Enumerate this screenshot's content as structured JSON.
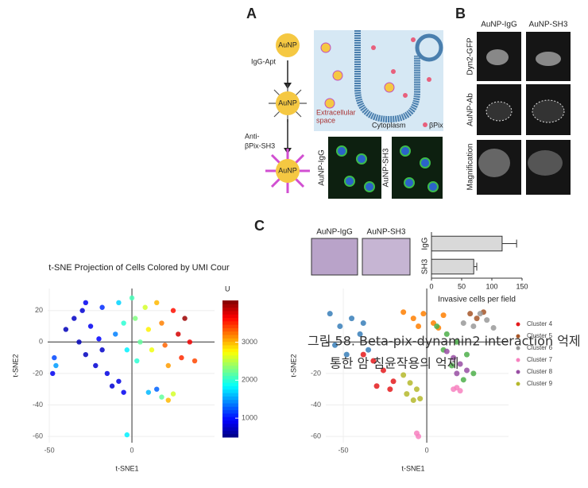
{
  "figure_a": {
    "label": "A",
    "particles": [
      "AuNP",
      "AuNP",
      "AuNP"
    ],
    "step1": "IgG-Apt",
    "step2": [
      "Anti-",
      "βPix-SH3"
    ],
    "extracellular": [
      "Extracellular",
      "space"
    ],
    "cytoplasm": "Cytoplasm",
    "legend": "βPix",
    "images": [
      "AuNP-IgG",
      "AuNP-SH3"
    ]
  },
  "figure_b": {
    "label": "B",
    "columns": [
      "AuNP-IgG",
      "AuNP-SH3"
    ],
    "rows": [
      "Dyn2-GFP",
      "AuNP-Ab",
      "Magnification"
    ]
  },
  "figure_c": {
    "label": "C",
    "images": [
      "AuNP-IgG",
      "AuNP-SH3"
    ]
  },
  "caption": [
    "그림 58. Beta-pix-dynamin2 interaction 억제",
    "통한 암 침윤작용의 억제"
  ],
  "chart_data": [
    {
      "type": "hbar",
      "categories": [
        "IgG",
        "SH3"
      ],
      "values": [
        117,
        70
      ],
      "errors": [
        24,
        5
      ],
      "color": "#d9d9d9",
      "xlim": [
        0,
        150
      ],
      "xticks": [
        0,
        50,
        100,
        150
      ],
      "xlabel": "Invasive cells per field"
    },
    {
      "type": "colorscatter",
      "title": "t-SNE Projection of Cells Colored by UMI Cour",
      "xlabel": "t-SNE1",
      "ylabel": "t-SNE2",
      "xlim": [
        -51,
        50
      ],
      "ylim": [
        -64,
        34
      ],
      "xticks": [
        -50,
        0
      ],
      "yticks": [
        20,
        0,
        -20,
        -40,
        -60
      ],
      "colormap": "jet",
      "clim": [
        500,
        4100
      ],
      "cticks": [
        1000,
        2000,
        3000
      ],
      "clabel": "U",
      "x": [
        -40,
        -35,
        -30,
        -32,
        -28,
        -25,
        -22,
        -20,
        -18,
        -15,
        -12,
        -10,
        -8,
        -5,
        -3,
        0,
        2,
        5,
        3,
        8,
        10,
        12,
        15,
        18,
        20,
        22,
        25,
        28,
        30,
        32,
        35,
        38,
        -47,
        -48,
        -46,
        -5,
        10,
        15,
        18,
        22,
        25,
        -3,
        -8,
        -18,
        -28
      ],
      "y": [
        8,
        15,
        20,
        0,
        -8,
        10,
        -15,
        2,
        22,
        -20,
        -28,
        5,
        25,
        12,
        -5,
        28,
        15,
        0,
        -12,
        22,
        8,
        -5,
        25,
        12,
        -2,
        -15,
        20,
        5,
        -10,
        15,
        0,
        -12,
        -10,
        -20,
        -15,
        -32,
        -32,
        -30,
        -35,
        -37,
        -33,
        -59,
        -25,
        -5,
        25
      ],
      "values": [
        700,
        750,
        800,
        700,
        720,
        900,
        800,
        950,
        1100,
        850,
        800,
        1400,
        1700,
        2000,
        1800,
        2100,
        2300,
        2200,
        2000,
        2600,
        2800,
        2700,
        3000,
        3200,
        3300,
        3100,
        3600,
        3800,
        3500,
        4000,
        3700,
        3400,
        1200,
        900,
        1500,
        900,
        1600,
        1300,
        2200,
        3000,
        2600,
        1800,
        850,
        760,
        900
      ]
    },
    {
      "type": "scatter",
      "xlabel": "t-SNE1",
      "ylabel": "t-SNE2",
      "xlim": [
        -60.5,
        49
      ],
      "ylim": [
        -64,
        34
      ],
      "xticks": [
        -50,
        0
      ],
      "yticks": [
        -20,
        -40,
        -60
      ],
      "series": [
        {
          "name": null,
          "color": "#377eb8",
          "x": [
            -58,
            -52,
            -45,
            -40,
            -35,
            -55,
            -48,
            -38
          ],
          "y": [
            18,
            10,
            15,
            5,
            -5,
            -2,
            -8,
            12
          ]
        },
        {
          "name": null,
          "color": "#ff7f00",
          "x": [
            -14,
            -8,
            -2,
            4,
            10,
            -5,
            7
          ],
          "y": [
            19,
            15,
            18,
            12,
            17,
            10,
            9
          ]
        },
        {
          "name": null,
          "color": "#4daf4a",
          "x": [
            6,
            12,
            18,
            24,
            28,
            15,
            22,
            10
          ],
          "y": [
            10,
            5,
            0,
            -8,
            -20,
            -15,
            -24,
            -5
          ]
        },
        {
          "name": "Cluster 4",
          "color": "#e41a1c",
          "x": [
            -38,
            -32,
            -26,
            -20,
            -30,
            -22
          ],
          "y": [
            -8,
            -12,
            -18,
            -25,
            -28,
            -30
          ]
        },
        {
          "name": "Cluster 5",
          "color": "#a65628",
          "x": [
            26,
            30,
            34
          ],
          "y": [
            18,
            15,
            19
          ]
        },
        {
          "name": "Cluster 6",
          "color": "#999999",
          "x": [
            22,
            28,
            36,
            40,
            32
          ],
          "y": [
            12,
            10,
            14,
            9,
            18
          ]
        },
        {
          "name": "Cluster 7",
          "color": "#f781bf",
          "x": [
            16,
            18,
            20,
            -6,
            -5
          ],
          "y": [
            -30,
            -29,
            -31,
            -58,
            -60
          ]
        },
        {
          "name": "Cluster 8",
          "color": "#984ea3",
          "x": [
            12,
            16,
            20,
            24,
            18
          ],
          "y": [
            -6,
            -10,
            -14,
            -18,
            -20
          ]
        },
        {
          "name": "Cluster 9",
          "color": "#b5b82c",
          "x": [
            -14,
            -10,
            -6,
            -4,
            -8,
            -12
          ],
          "y": [
            -21,
            -26,
            -30,
            -36,
            -37,
            -33
          ]
        }
      ]
    }
  ]
}
